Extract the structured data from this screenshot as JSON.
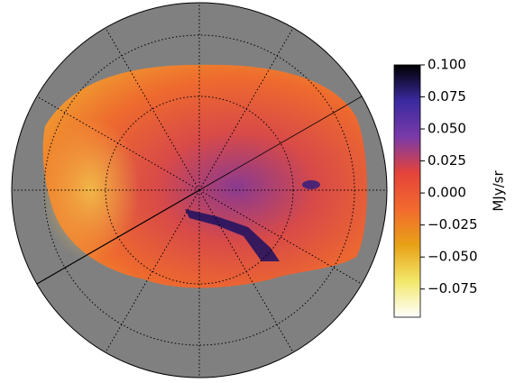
{
  "chart_data": {
    "type": "colorbar",
    "colorbar_label": "MJy/sr",
    "clim": [
      -0.097,
      0.1
    ],
    "colors": [
      "#ffffff",
      "#f2e86a",
      "#e8a117",
      "#f26a2e",
      "#e5433a",
      "#7a3aa8",
      "#3a2aa0",
      "#000000"
    ],
    "ticks": [
      {
        "value": 0.1,
        "label": "0.100"
      },
      {
        "value": 0.075,
        "label": "0.075"
      },
      {
        "value": 0.05,
        "label": "0.050"
      },
      {
        "value": 0.025,
        "label": "0.025"
      },
      {
        "value": 0,
        "label": "0.000"
      },
      {
        "value": -0.025,
        "label": "−0.025"
      },
      {
        "value": -0.05,
        "label": "−0.050"
      },
      {
        "value": -0.075,
        "label": "−0.075"
      }
    ]
  }
}
